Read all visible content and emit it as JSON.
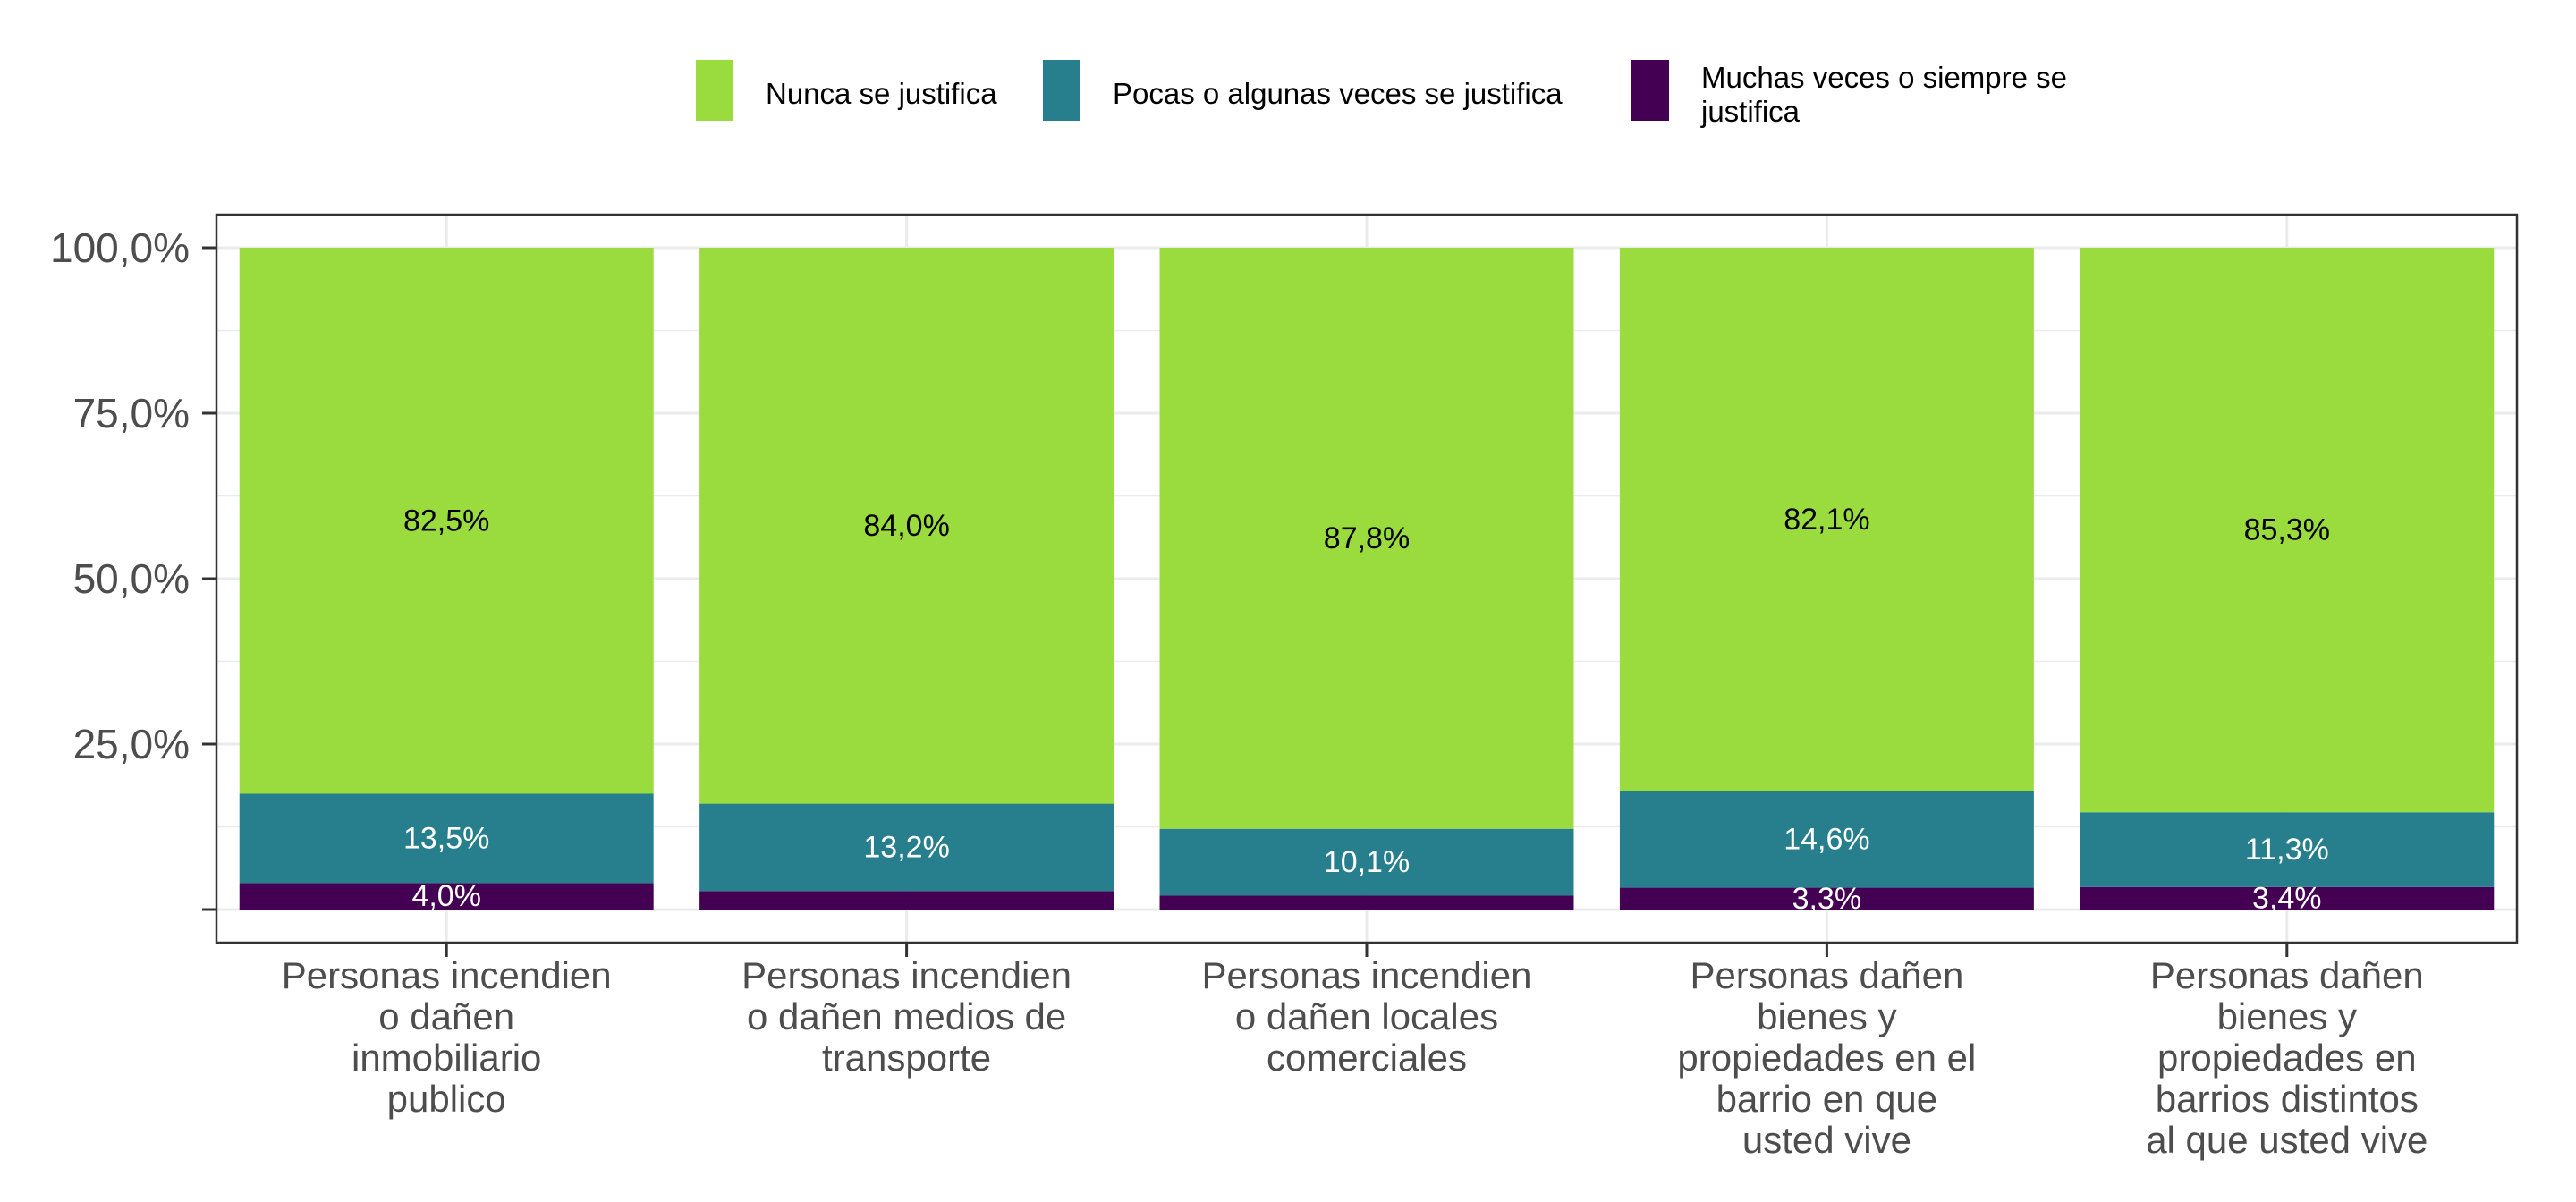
{
  "chart_data": {
    "type": "bar",
    "stacked": true,
    "categories": [
      [
        "Personas incendien",
        "o dañen",
        "inmobiliario",
        "publico"
      ],
      [
        "Personas incendien",
        "o dañen medios de",
        "transporte"
      ],
      [
        "Personas incendien",
        "o dañen locales",
        "comerciales"
      ],
      [
        "Personas dañen",
        "bienes y",
        "propiedades en el",
        "barrio en que",
        "usted vive"
      ],
      [
        "Personas dañen",
        "bienes y",
        "propiedades en",
        "barrios distintos",
        "al que usted vive"
      ]
    ],
    "series": [
      {
        "name": "Muchas veces o siempre se justifica",
        "legend_lines": [
          "Muchas veces o siempre se",
          "justifica"
        ],
        "color": "#440154",
        "values": [
          4.0,
          2.8,
          2.1,
          3.3,
          3.4
        ],
        "labels": [
          "4,0%",
          "",
          "",
          "3,3%",
          "3,4%"
        ],
        "label_color": "#ffffff"
      },
      {
        "name": "Pocas o algunas veces se justifica",
        "legend_lines": [
          "Pocas o algunas veces se justifica"
        ],
        "color": "#277f8e",
        "values": [
          13.5,
          13.2,
          10.1,
          14.6,
          11.3
        ],
        "labels": [
          "13,5%",
          "13,2%",
          "10,1%",
          "14,6%",
          "11,3%"
        ],
        "label_color": "#ffffff"
      },
      {
        "name": "Nunca se justifica",
        "legend_lines": [
          "Nunca se justifica"
        ],
        "color": "#9adb3e",
        "values": [
          82.5,
          84.0,
          87.8,
          82.1,
          85.3
        ],
        "labels": [
          "82,5%",
          "84,0%",
          "87,8%",
          "82,1%",
          "85,3%"
        ],
        "label_color": "#000000"
      }
    ],
    "legend_order": [
      2,
      1,
      0
    ],
    "legend_position": "top",
    "y_ticks": [
      0,
      25,
      50,
      75,
      100
    ],
    "y_tick_labels": [
      "",
      "25,0%",
      "50,0%",
      "75,0%",
      "100,0%"
    ],
    "ylim": [
      -5,
      105
    ],
    "grid": true,
    "xlabel": "",
    "ylabel": ""
  }
}
